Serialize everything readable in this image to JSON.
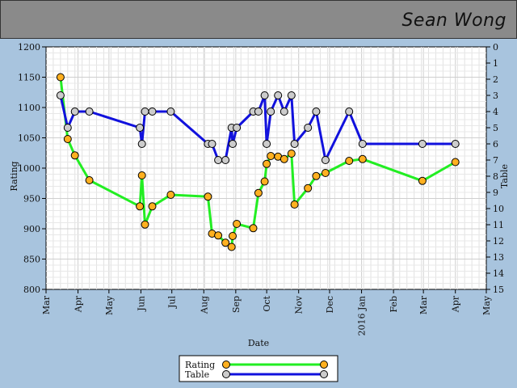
{
  "header": {
    "name": "Sean Wong"
  },
  "chart_data": {
    "type": "line",
    "xlabel": "Date",
    "ylabel_left": "Rating",
    "ylabel_right": "Table",
    "x_ticks": [
      "Mar",
      "Apr",
      "May",
      "Jun",
      "Jul",
      "Aug",
      "Sep",
      "Oct",
      "Nov",
      "Dec",
      "2016 Jan",
      "Feb",
      "Mar",
      "Apr",
      "May"
    ],
    "ylim_left": [
      800,
      1200
    ],
    "y_ticks_left": [
      800,
      850,
      900,
      950,
      1000,
      1050,
      1100,
      1150,
      1200
    ],
    "ylim_right": [
      15,
      0
    ],
    "y_ticks_right": [
      0,
      1,
      2,
      3,
      4,
      5,
      6,
      7,
      8,
      9,
      10,
      11,
      12,
      13,
      14,
      15
    ],
    "grid": true,
    "legend": "bottom-center",
    "series": [
      {
        "name": "Rating",
        "axis": "left",
        "color": "#22ee22",
        "marker_color": "#ffb020",
        "x": [
          "2015-03-15",
          "2015-03-22",
          "2015-03-29",
          "2015-04-12",
          "2015-05-31",
          "2015-06-02",
          "2015-06-05",
          "2015-06-12",
          "2015-06-30",
          "2015-08-05",
          "2015-08-09",
          "2015-08-15",
          "2015-08-22",
          "2015-08-28",
          "2015-08-29",
          "2015-09-02",
          "2015-09-18",
          "2015-09-23",
          "2015-09-29",
          "2015-10-01",
          "2015-10-05",
          "2015-10-12",
          "2015-10-18",
          "2015-10-25",
          "2015-10-28",
          "2015-11-10",
          "2015-11-18",
          "2015-11-27",
          "2015-12-20",
          "2016-01-02",
          "2016-02-29",
          "2016-04-01"
        ],
        "values": [
          1150,
          1048,
          1021,
          980,
          937,
          988,
          907,
          937,
          956,
          953,
          892,
          889,
          877,
          870,
          888,
          908,
          901,
          959,
          978,
          1007,
          1020,
          1019,
          1015,
          1024,
          940,
          967,
          987,
          992,
          1012,
          1015,
          979,
          1010
        ]
      },
      {
        "name": "Table",
        "axis": "right",
        "color": "#1111dd",
        "marker_color": "#cccccc",
        "x": [
          "2015-03-15",
          "2015-03-22",
          "2015-03-29",
          "2015-04-12",
          "2015-05-31",
          "2015-06-02",
          "2015-06-05",
          "2015-06-12",
          "2015-06-30",
          "2015-08-05",
          "2015-08-09",
          "2015-08-15",
          "2015-08-22",
          "2015-08-28",
          "2015-08-29",
          "2015-09-02",
          "2015-09-18",
          "2015-09-23",
          "2015-09-29",
          "2015-10-01",
          "2015-10-05",
          "2015-10-12",
          "2015-10-18",
          "2015-10-25",
          "2015-10-28",
          "2015-11-10",
          "2015-11-18",
          "2015-11-27",
          "2015-12-20",
          "2016-01-02",
          "2016-02-29",
          "2016-04-01"
        ],
        "values": [
          3,
          5,
          4,
          4,
          5,
          6,
          4,
          4,
          4,
          6,
          6,
          7,
          7,
          5,
          6,
          5,
          4,
          4,
          3,
          6,
          4,
          3,
          4,
          3,
          6,
          5,
          4,
          7,
          4,
          6,
          6,
          6
        ]
      }
    ]
  }
}
